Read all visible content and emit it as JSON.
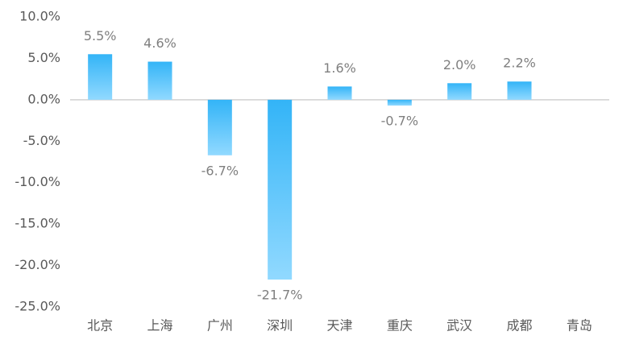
{
  "chart_data": {
    "type": "bar",
    "categories": [
      "北京",
      "上海",
      "广州",
      "深圳",
      "天津",
      "重庆",
      "武汉",
      "成都",
      "青岛"
    ],
    "values": [
      5.5,
      4.6,
      -6.7,
      -21.7,
      1.6,
      -0.7,
      2.0,
      2.2,
      null
    ],
    "value_labels": [
      "5.5%",
      "4.6%",
      "-6.7%",
      "-21.7%",
      "1.6%",
      "-0.7%",
      "2.0%",
      "2.2%",
      null
    ],
    "color": "#33b4f7",
    "ylim": [
      -25,
      10
    ],
    "yticks": [
      {
        "value": 10,
        "label": "10.0%"
      },
      {
        "value": 5,
        "label": "5.0%"
      },
      {
        "value": 0,
        "label": "0.0%"
      },
      {
        "value": -5,
        "label": "-5.0%"
      },
      {
        "value": -10,
        "label": "-10.0%"
      },
      {
        "value": -15,
        "label": "-15.0%"
      },
      {
        "value": -20,
        "label": "-20.0%"
      },
      {
        "value": -25,
        "label": "-25.0%"
      }
    ],
    "grid": false
  }
}
